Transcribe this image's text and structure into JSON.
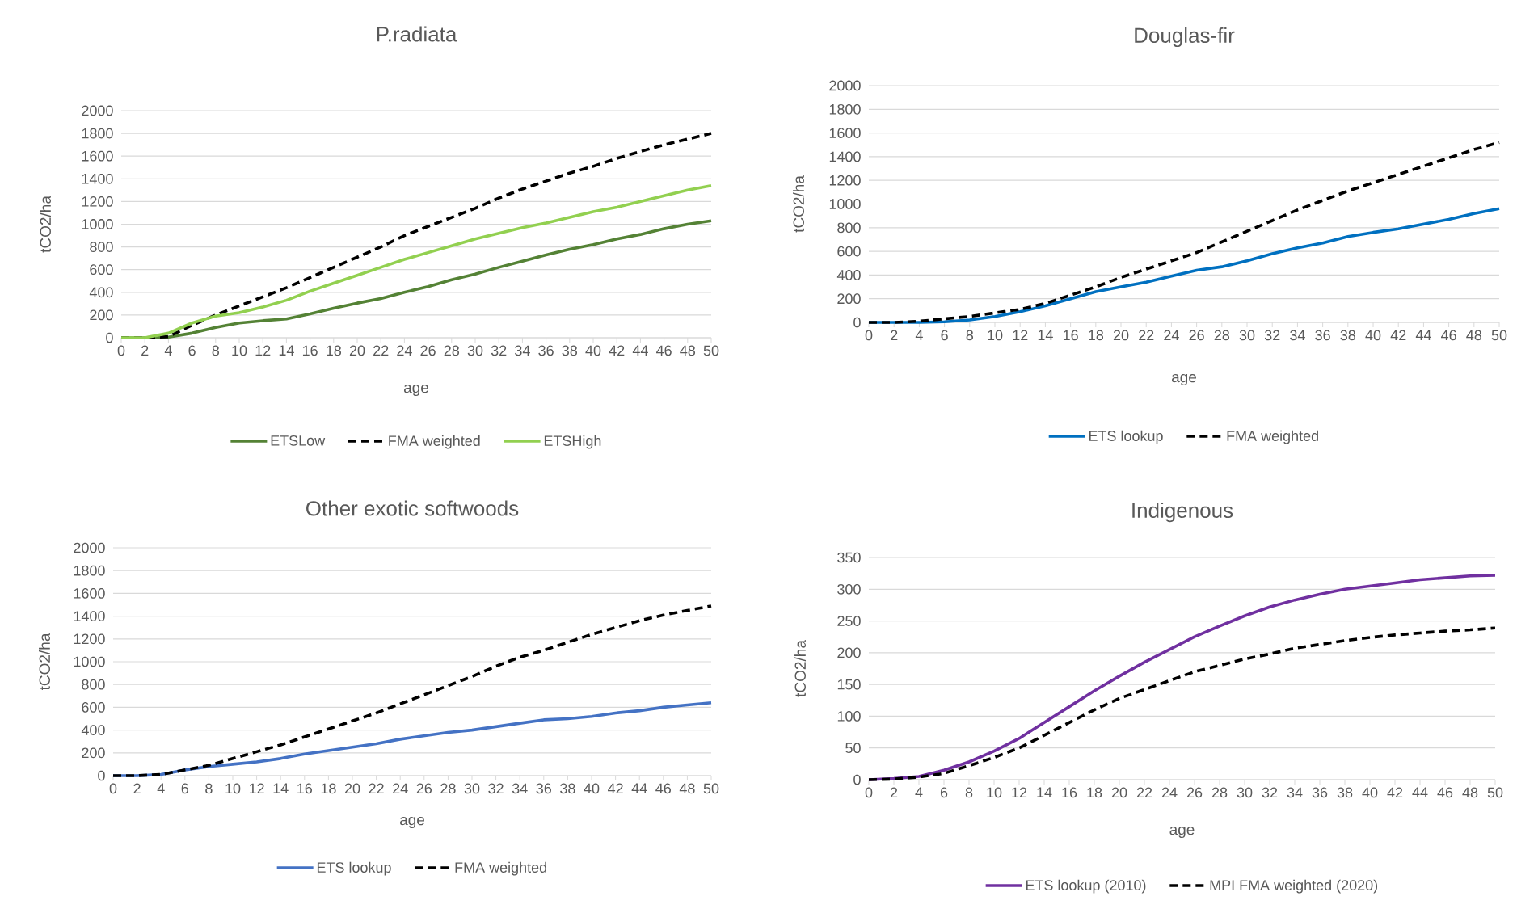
{
  "chart_data": [
    {
      "type": "line",
      "title": "P.radiata",
      "xlabel": "age",
      "ylabel": "tCO2/ha",
      "grid": "y",
      "legend": "bottom",
      "x": [
        0,
        2,
        4,
        6,
        8,
        10,
        12,
        14,
        16,
        18,
        20,
        22,
        24,
        26,
        28,
        30,
        32,
        34,
        36,
        38,
        40,
        42,
        44,
        46,
        48,
        50
      ],
      "xlim": [
        0,
        50
      ],
      "xticks": [
        0,
        2,
        4,
        6,
        8,
        10,
        12,
        14,
        16,
        18,
        20,
        22,
        24,
        26,
        28,
        30,
        32,
        34,
        36,
        38,
        40,
        42,
        44,
        46,
        48,
        50
      ],
      "ylim": [
        0,
        2000
      ],
      "yticks": [
        0,
        200,
        400,
        600,
        800,
        1000,
        1200,
        1400,
        1600,
        1800,
        2000
      ],
      "series": [
        {
          "name": "ETSLow",
          "color": "#548235",
          "line_style": "solid",
          "values": [
            0,
            0,
            5,
            40,
            90,
            130,
            150,
            165,
            210,
            260,
            305,
            345,
            400,
            450,
            510,
            560,
            620,
            675,
            730,
            780,
            820,
            870,
            910,
            960,
            1000,
            1030
          ]
        },
        {
          "name": "FMA weighted",
          "color": "#000000",
          "line_style": "dashed",
          "values": [
            0,
            0,
            10,
            110,
            200,
            280,
            360,
            440,
            530,
            620,
            710,
            800,
            900,
            980,
            1060,
            1140,
            1230,
            1310,
            1380,
            1450,
            1510,
            1580,
            1640,
            1700,
            1750,
            1800
          ]
        },
        {
          "name": "ETSHigh",
          "color": "#92d050",
          "line_style": "solid",
          "values": [
            0,
            0,
            40,
            130,
            190,
            220,
            270,
            330,
            410,
            480,
            550,
            620,
            690,
            750,
            810,
            870,
            920,
            970,
            1010,
            1060,
            1110,
            1150,
            1200,
            1250,
            1300,
            1340
          ]
        }
      ]
    },
    {
      "type": "line",
      "title": "Douglas-fir",
      "xlabel": "age",
      "ylabel": "tCO2/ha",
      "grid": "y",
      "legend": "bottom",
      "x": [
        0,
        2,
        4,
        6,
        8,
        10,
        12,
        14,
        16,
        18,
        20,
        22,
        24,
        26,
        28,
        30,
        32,
        34,
        36,
        38,
        40,
        42,
        44,
        46,
        48,
        50
      ],
      "xlim": [
        0,
        50
      ],
      "xticks": [
        0,
        2,
        4,
        6,
        8,
        10,
        12,
        14,
        16,
        18,
        20,
        22,
        24,
        26,
        28,
        30,
        32,
        34,
        36,
        38,
        40,
        42,
        44,
        46,
        48,
        50
      ],
      "ylim": [
        0,
        2000
      ],
      "yticks": [
        0,
        200,
        400,
        600,
        800,
        1000,
        1200,
        1400,
        1600,
        1800,
        2000
      ],
      "series": [
        {
          "name": "ETS lookup",
          "color": "#0070c0",
          "line_style": "solid",
          "values": [
            0,
            0,
            0,
            5,
            20,
            50,
            90,
            140,
            200,
            260,
            300,
            340,
            390,
            440,
            470,
            520,
            580,
            630,
            670,
            725,
            760,
            790,
            830,
            870,
            920,
            960
          ]
        },
        {
          "name": "FMA weighted",
          "color": "#000000",
          "line_style": "dashed",
          "values": [
            0,
            0,
            10,
            30,
            50,
            80,
            110,
            160,
            230,
            300,
            380,
            450,
            520,
            590,
            680,
            770,
            860,
            950,
            1030,
            1110,
            1180,
            1250,
            1320,
            1390,
            1460,
            1520
          ]
        }
      ]
    },
    {
      "type": "line",
      "title": "Other exotic softwoods",
      "xlabel": "age",
      "ylabel": "tCO2/ha",
      "grid": "y",
      "legend": "bottom",
      "x": [
        0,
        2,
        4,
        6,
        8,
        10,
        12,
        14,
        16,
        18,
        20,
        22,
        24,
        26,
        28,
        30,
        32,
        34,
        36,
        38,
        40,
        42,
        44,
        46,
        48,
        50
      ],
      "xlim": [
        0,
        50
      ],
      "xticks": [
        0,
        2,
        4,
        6,
        8,
        10,
        12,
        14,
        16,
        18,
        20,
        22,
        24,
        26,
        28,
        30,
        32,
        34,
        36,
        38,
        40,
        42,
        44,
        46,
        48,
        50
      ],
      "ylim": [
        0,
        2000
      ],
      "yticks": [
        0,
        200,
        400,
        600,
        800,
        1000,
        1200,
        1400,
        1600,
        1800,
        2000
      ],
      "series": [
        {
          "name": "ETS lookup",
          "color": "#4472c4",
          "line_style": "solid",
          "values": [
            0,
            0,
            10,
            50,
            80,
            100,
            120,
            150,
            190,
            220,
            250,
            280,
            320,
            350,
            380,
            400,
            430,
            460,
            490,
            500,
            520,
            550,
            570,
            600,
            620,
            640
          ]
        },
        {
          "name": "FMA weighted",
          "color": "#000000",
          "line_style": "dashed",
          "values": [
            0,
            0,
            10,
            50,
            90,
            150,
            210,
            270,
            340,
            410,
            480,
            550,
            630,
            710,
            790,
            870,
            960,
            1040,
            1100,
            1170,
            1240,
            1300,
            1360,
            1410,
            1450,
            1490
          ]
        }
      ]
    },
    {
      "type": "line",
      "title": "Indigenous",
      "xlabel": "age",
      "ylabel": "tCO2/ha",
      "grid": "y",
      "legend": "bottom",
      "x": [
        0,
        2,
        4,
        6,
        8,
        10,
        12,
        14,
        16,
        18,
        20,
        22,
        24,
        26,
        28,
        30,
        32,
        34,
        36,
        38,
        40,
        42,
        44,
        46,
        48,
        50
      ],
      "xlim": [
        0,
        50
      ],
      "xticks": [
        0,
        2,
        4,
        6,
        8,
        10,
        12,
        14,
        16,
        18,
        20,
        22,
        24,
        26,
        28,
        30,
        32,
        34,
        36,
        38,
        40,
        42,
        44,
        46,
        48,
        50
      ],
      "ylim": [
        0,
        350
      ],
      "yticks": [
        0,
        50,
        100,
        150,
        200,
        250,
        300,
        350
      ],
      "series": [
        {
          "name": "ETS lookup (2010)",
          "color": "#7030a0",
          "line_style": "solid",
          "values": [
            0,
            2,
            5,
            15,
            28,
            45,
            65,
            90,
            115,
            140,
            163,
            185,
            205,
            225,
            242,
            258,
            272,
            283,
            292,
            300,
            305,
            310,
            315,
            318,
            321,
            322
          ]
        },
        {
          "name": "MPI FMA weighted (2020)",
          "color": "#000000",
          "line_style": "dashed",
          "values": [
            0,
            1,
            4,
            10,
            22,
            35,
            50,
            70,
            90,
            110,
            128,
            142,
            156,
            170,
            180,
            190,
            198,
            207,
            213,
            219,
            224,
            228,
            231,
            234,
            236,
            239
          ]
        }
      ]
    }
  ]
}
